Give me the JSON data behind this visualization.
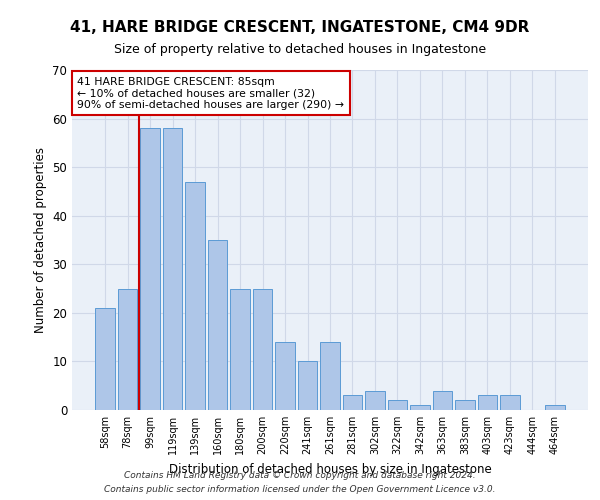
{
  "title1": "41, HARE BRIDGE CRESCENT, INGATESTONE, CM4 9DR",
  "title2": "Size of property relative to detached houses in Ingatestone",
  "xlabel": "Distribution of detached houses by size in Ingatestone",
  "ylabel": "Number of detached properties",
  "categories": [
    "58sqm",
    "78sqm",
    "99sqm",
    "119sqm",
    "139sqm",
    "160sqm",
    "180sqm",
    "200sqm",
    "220sqm",
    "241sqm",
    "261sqm",
    "281sqm",
    "302sqm",
    "322sqm",
    "342sqm",
    "363sqm",
    "383sqm",
    "403sqm",
    "423sqm",
    "444sqm",
    "464sqm"
  ],
  "values": [
    21,
    25,
    58,
    58,
    47,
    35,
    25,
    25,
    14,
    10,
    14,
    3,
    4,
    2,
    1,
    4,
    2,
    3,
    3,
    0,
    1
  ],
  "bar_color": "#aec6e8",
  "bar_edge_color": "#5b9bd5",
  "annotation_line1": "41 HARE BRIDGE CRESCENT: 85sqm",
  "annotation_line2": "← 10% of detached houses are smaller (32)",
  "annotation_line3": "90% of semi-detached houses are larger (290) →",
  "annotation_box_color": "#ffffff",
  "annotation_box_edge": "#cc0000",
  "vline_color": "#cc0000",
  "footer1": "Contains HM Land Registry data © Crown copyright and database right 2024.",
  "footer2": "Contains public sector information licensed under the Open Government Licence v3.0.",
  "grid_color": "#d0d8e8",
  "bg_color": "#eaf0f8",
  "ylim": [
    0,
    70
  ],
  "yticks": [
    0,
    10,
    20,
    30,
    40,
    50,
    60,
    70
  ]
}
